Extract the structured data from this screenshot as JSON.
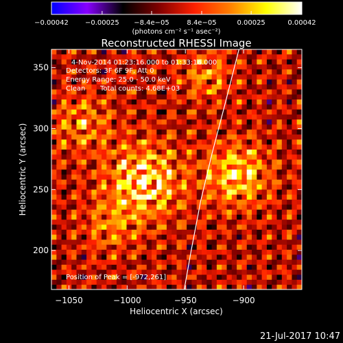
{
  "chart_data": {
    "type": "heatmap",
    "title": "Reconstructed RHESSI Image",
    "xlabel": "Heliocentric X (arcsec)",
    "ylabel": "Heliocentric Y (arcsec)",
    "xlim": [
      -1065,
      -850
    ],
    "ylim": [
      168,
      365
    ],
    "x_ticks": [
      -1050,
      -1000,
      -950,
      -900
    ],
    "x_tick_labels": [
      "−1050",
      "−1000",
      "−950",
      "−900"
    ],
    "y_ticks": [
      200,
      250,
      300,
      350
    ],
    "y_tick_labels": [
      "200",
      "250",
      "300",
      "350"
    ],
    "colorbar": {
      "range": [
        -0.00042,
        0.00042
      ],
      "ticks": [
        -0.00042,
        -0.00025,
        -8.4e-05,
        8.4e-05,
        0.00025,
        0.00042
      ],
      "tick_labels": [
        "−0.00042",
        "−0.00025",
        "−8.4e−05",
        "8.4e−05",
        "0.00025",
        "0.00042"
      ],
      "unit_label": "(photons cm⁻² s⁻¹ asec⁻²)",
      "colormap": [
        "#0000ff",
        "#8800ff",
        "#000000",
        "#800000",
        "#ff2000",
        "#ff8000",
        "#ffff00",
        "#ffffff"
      ]
    },
    "annotations": {
      "time_range": "4-Nov-2014 01:23:16.000 to 01:33:16.000",
      "detectors": "Detectors: 3F 6F 9F, Att 0",
      "energy_range": "Energy Range: 25.0 - 50.0 keV",
      "method": "Clean",
      "total_counts": "Total counts: 4.68E+03",
      "peak_position": "Position of Peak = [-972,261]"
    },
    "limb_points": [
      [
        -951,
        168
      ],
      [
        -945,
        200
      ],
      [
        -937,
        240
      ],
      [
        -927,
        280
      ],
      [
        -916,
        320
      ],
      [
        -904,
        365
      ]
    ]
  },
  "footer": {
    "timestamp": "21-Jul-2017 10:47"
  },
  "colors": {
    "background": "#000000",
    "text": "#ffffff"
  }
}
